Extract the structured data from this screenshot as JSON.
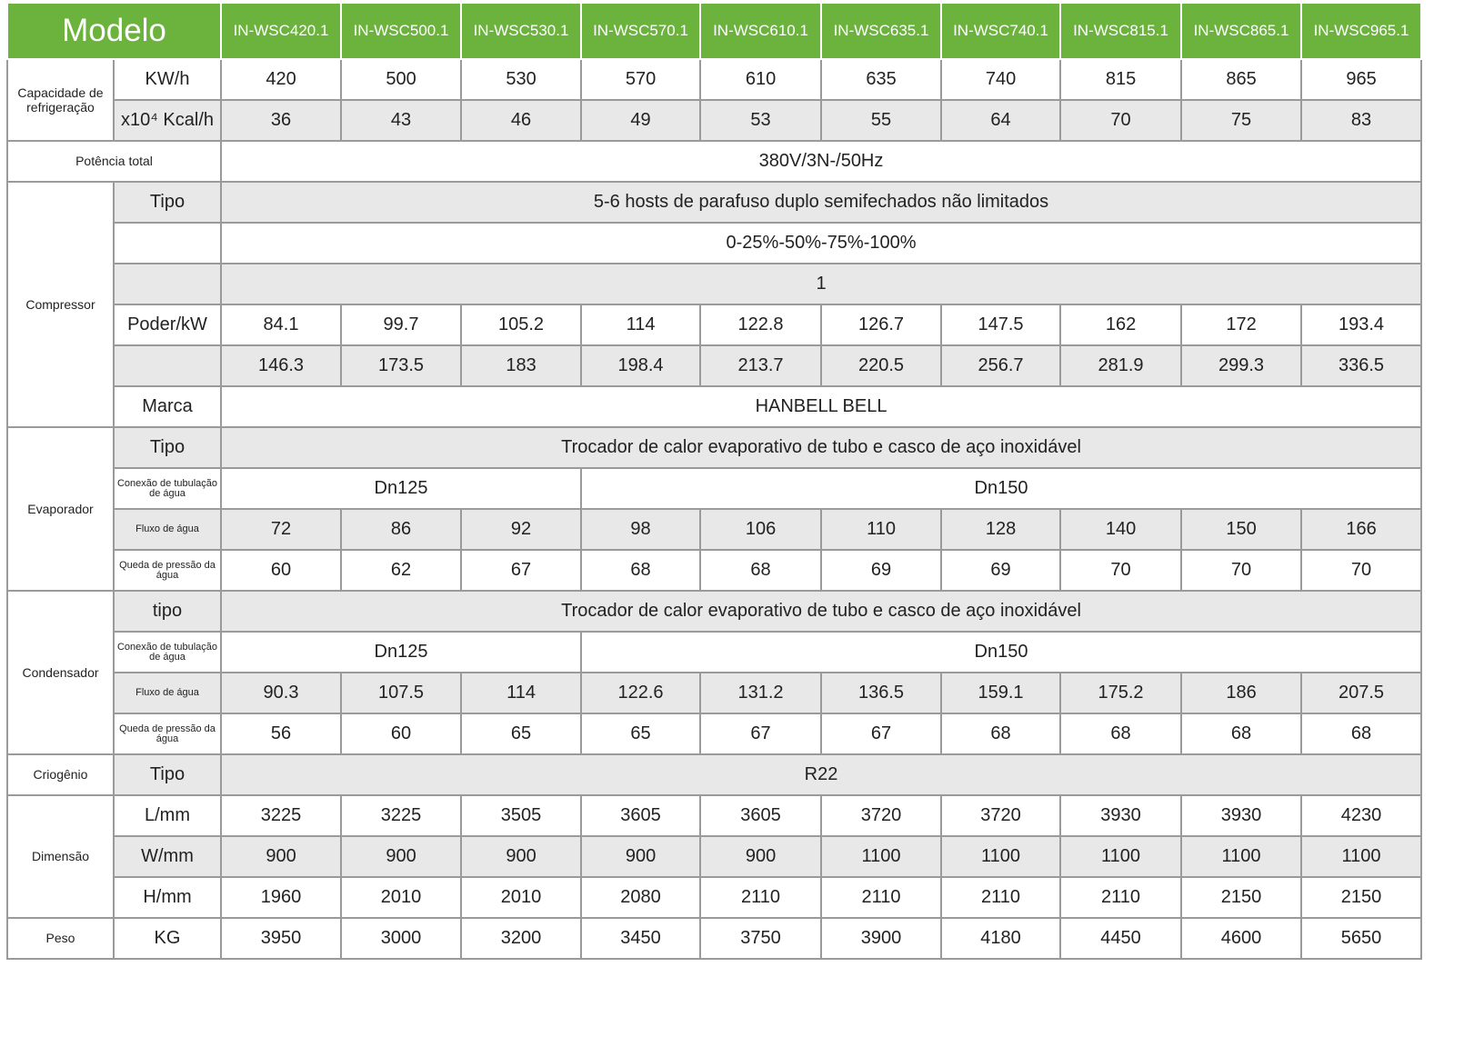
{
  "header": {
    "title": "Modelo",
    "models": [
      "IN-WSC420.1",
      "IN-WSC500.1",
      "IN-WSC530.1",
      "IN-WSC570.1",
      "IN-WSC610.1",
      "IN-WSC635.1",
      "IN-WSC740.1",
      "IN-WSC815.1",
      "IN-WSC865.1",
      "IN-WSC965.1"
    ]
  },
  "colors": {
    "header_bg": "#6cb33e",
    "shaded_row": "#e8e8e8",
    "border": "#9a9a9a"
  },
  "groups": [
    {
      "label": "Capacidade de refrigeração",
      "rows": [
        {
          "sub": "KW/h",
          "gray": false,
          "cells": [
            "420",
            "500",
            "530",
            "570",
            "610",
            "635",
            "740",
            "815",
            "865",
            "965"
          ]
        },
        {
          "sub": "x10⁴ Kcal/h",
          "gray": true,
          "cells": [
            "36",
            "43",
            "46",
            "49",
            "53",
            "55",
            "64",
            "70",
            "75",
            "83"
          ]
        }
      ]
    },
    {
      "label": "Potência total",
      "rows": [
        {
          "sub": null,
          "gray": false,
          "merged": "380V/3N-/50Hz"
        }
      ]
    },
    {
      "label": "Compressor",
      "rows": [
        {
          "sub": "Tipo",
          "gray": true,
          "merged": "5-6 hosts de parafuso duplo semifechados não limitados"
        },
        {
          "sub": "",
          "gray": false,
          "merged": "0-25%-50%-75%-100%"
        },
        {
          "sub": "",
          "gray": true,
          "merged": "1"
        },
        {
          "sub": "Poder/kW",
          "gray": false,
          "cells": [
            "84.1",
            "99.7",
            "105.2",
            "114",
            "122.8",
            "126.7",
            "147.5",
            "162",
            "172",
            "193.4"
          ]
        },
        {
          "sub": "",
          "gray": true,
          "cells": [
            "146.3",
            "173.5",
            "183",
            "198.4",
            "213.7",
            "220.5",
            "256.7",
            "281.9",
            "299.3",
            "336.5"
          ]
        },
        {
          "sub": "Marca",
          "gray": false,
          "merged": "HANBELL BELL"
        }
      ]
    },
    {
      "label": "Evaporador",
      "rows": [
        {
          "sub": "Tipo",
          "gray": true,
          "merged": "Trocador de calor evaporativo de tubo e casco de aço inoxidável"
        },
        {
          "sub": "Conexão de tubulação de água",
          "small": true,
          "gray": false,
          "split": [
            {
              "text": "Dn125",
              "span": 3
            },
            {
              "text": "Dn150",
              "span": 7
            }
          ]
        },
        {
          "sub": "Fluxo de água",
          "small": true,
          "gray": true,
          "cells": [
            "72",
            "86",
            "92",
            "98",
            "106",
            "110",
            "128",
            "140",
            "150",
            "166"
          ]
        },
        {
          "sub": "Queda de pressão da água",
          "small": true,
          "gray": false,
          "cells": [
            "60",
            "62",
            "67",
            "68",
            "68",
            "69",
            "69",
            "70",
            "70",
            "70"
          ]
        }
      ]
    },
    {
      "label": "Condensador",
      "rows": [
        {
          "sub": "tipo",
          "gray": true,
          "merged": "Trocador de calor evaporativo de tubo e casco de aço inoxidável"
        },
        {
          "sub": "Conexão de tubulação de água",
          "small": true,
          "gray": false,
          "split": [
            {
              "text": "Dn125",
              "span": 3
            },
            {
              "text": "Dn150",
              "span": 7
            }
          ]
        },
        {
          "sub": "Fluxo de água",
          "small": true,
          "gray": true,
          "cells": [
            "90.3",
            "107.5",
            "114",
            "122.6",
            "131.2",
            "136.5",
            "159.1",
            "175.2",
            "186",
            "207.5"
          ]
        },
        {
          "sub": "Queda de pressão da água",
          "small": true,
          "gray": false,
          "cells": [
            "56",
            "60",
            "65",
            "65",
            "67",
            "67",
            "68",
            "68",
            "68",
            "68"
          ]
        }
      ]
    },
    {
      "label": "Criogênio",
      "rows": [
        {
          "sub": "Tipo",
          "gray": true,
          "merged": "R22"
        }
      ]
    },
    {
      "label": "Dimensão",
      "rows": [
        {
          "sub": "L/mm",
          "gray": false,
          "cells": [
            "3225",
            "3225",
            "3505",
            "3605",
            "3605",
            "3720",
            "3720",
            "3930",
            "3930",
            "4230"
          ]
        },
        {
          "sub": "W/mm",
          "gray": true,
          "cells": [
            "900",
            "900",
            "900",
            "900",
            "900",
            "1100",
            "1100",
            "1100",
            "1100",
            "1100"
          ]
        },
        {
          "sub": "H/mm",
          "gray": false,
          "cells": [
            "1960",
            "2010",
            "2010",
            "2080",
            "2110",
            "2110",
            "2110",
            "2110",
            "2150",
            "2150"
          ]
        }
      ]
    },
    {
      "label": "Peso",
      "rows": [
        {
          "sub": "KG",
          "gray": false,
          "cells": [
            "3950",
            "3000",
            "3200",
            "3450",
            "3750",
            "3900",
            "4180",
            "4450",
            "4600",
            "5650"
          ]
        }
      ]
    }
  ]
}
